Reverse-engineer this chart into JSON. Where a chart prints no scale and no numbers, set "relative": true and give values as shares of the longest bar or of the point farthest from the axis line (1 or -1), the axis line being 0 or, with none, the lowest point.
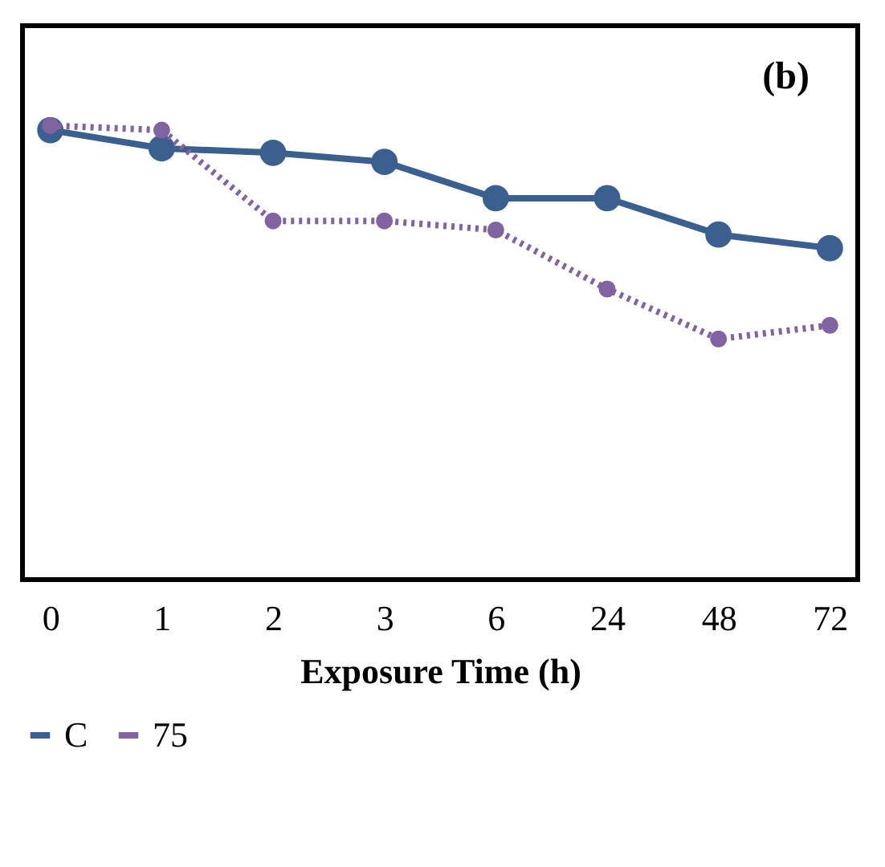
{
  "chart_data": {
    "type": "line",
    "relative": true,
    "xlabel": "Exposure Time (h)",
    "categories": [
      "0",
      "1",
      "2",
      "3",
      "6",
      "24",
      "48",
      "72"
    ],
    "series": [
      {
        "name": "C",
        "color": "#3b5f8f",
        "line_style": "solid",
        "marker": "circle",
        "values": [
          0.99,
          0.95,
          0.94,
          0.92,
          0.84,
          0.84,
          0.76,
          0.73
        ]
      },
      {
        "name": "75",
        "color": "#8064a2",
        "line_style": "dotted",
        "marker": "circle",
        "values": [
          1.0,
          0.99,
          0.79,
          0.79,
          0.77,
          0.64,
          0.53,
          0.56
        ]
      }
    ],
    "annotations": [
      "(b)"
    ],
    "legend": "bottom",
    "grid": false
  }
}
